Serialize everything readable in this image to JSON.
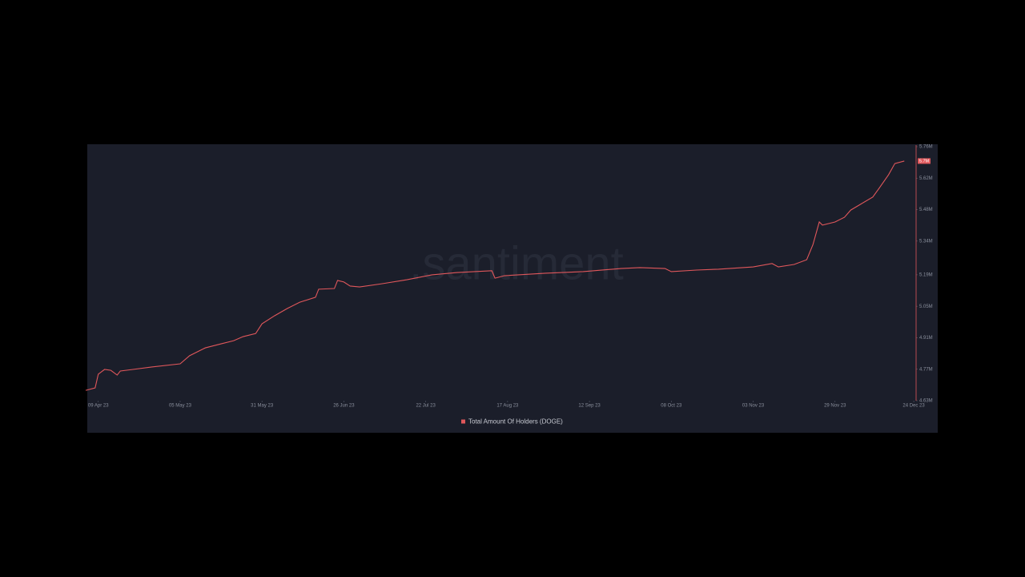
{
  "chart_data": {
    "type": "line",
    "watermark": ".santiment",
    "x": [
      "2023-04-05",
      "2023-04-08",
      "2023-04-09",
      "2023-04-11",
      "2023-04-13",
      "2023-04-15",
      "2023-04-16",
      "2023-04-20",
      "2023-04-26",
      "2023-05-05",
      "2023-05-08",
      "2023-05-13",
      "2023-05-18",
      "2023-05-22",
      "2023-05-25",
      "2023-05-29",
      "2023-05-31",
      "2023-06-04",
      "2023-06-08",
      "2023-06-12",
      "2023-06-17",
      "2023-06-18",
      "2023-06-23",
      "2023-06-24",
      "2023-06-26",
      "2023-06-28",
      "2023-07-01",
      "2023-07-08",
      "2023-07-16",
      "2023-07-24",
      "2023-08-01",
      "2023-08-12",
      "2023-08-13",
      "2023-08-16",
      "2023-08-29",
      "2023-09-10",
      "2023-09-22",
      "2023-09-28",
      "2023-10-06",
      "2023-10-08",
      "2023-10-16",
      "2023-10-23",
      "2023-11-03",
      "2023-11-09",
      "2023-11-11",
      "2023-11-16",
      "2023-11-20",
      "2023-11-22",
      "2023-11-24",
      "2023-11-25",
      "2023-11-29",
      "2023-12-02",
      "2023-12-04",
      "2023-12-07",
      "2023-12-11",
      "2023-12-13",
      "2023-12-16",
      "2023-12-18",
      "2023-12-21"
    ],
    "series": [
      {
        "name": "Total Amount Of Holders (DOGE)",
        "color": "#e0575b",
        "values": [
          4.676,
          4.687,
          4.748,
          4.769,
          4.765,
          4.744,
          4.762,
          4.769,
          4.78,
          4.794,
          4.83,
          4.865,
          4.883,
          4.897,
          4.915,
          4.929,
          4.972,
          5.008,
          5.04,
          5.068,
          5.09,
          5.126,
          5.129,
          5.165,
          5.158,
          5.14,
          5.136,
          5.15,
          5.168,
          5.19,
          5.2,
          5.208,
          5.175,
          5.186,
          5.197,
          5.204,
          5.218,
          5.222,
          5.218,
          5.204,
          5.211,
          5.215,
          5.225,
          5.24,
          5.225,
          5.236,
          5.257,
          5.325,
          5.425,
          5.411,
          5.425,
          5.446,
          5.478,
          5.503,
          5.536,
          5.575,
          5.635,
          5.685,
          5.696
        ],
        "last_value_label": "5.7M"
      }
    ],
    "xlim": [
      "2023-04-05",
      "2023-12-25"
    ],
    "xticks": [
      {
        "value": "2023-04-09",
        "label": "09 Apr 23"
      },
      {
        "value": "2023-05-05",
        "label": "05 May 23"
      },
      {
        "value": "2023-05-31",
        "label": "31 May 23"
      },
      {
        "value": "2023-06-26",
        "label": "26 Jun 23"
      },
      {
        "value": "2023-07-22",
        "label": "22 Jul 23"
      },
      {
        "value": "2023-08-17",
        "label": "17 Aug 23"
      },
      {
        "value": "2023-09-12",
        "label": "12 Sep 23"
      },
      {
        "value": "2023-10-08",
        "label": "08 Oct 23"
      },
      {
        "value": "2023-11-03",
        "label": "03 Nov 23"
      },
      {
        "value": "2023-11-29",
        "label": "29 Nov 23"
      },
      {
        "value": "2023-12-24",
        "label": "24 Dec 23"
      }
    ],
    "ylim": [
      4.63,
      5.76
    ],
    "yticks": [
      {
        "value": 4.63,
        "label": "4.63M"
      },
      {
        "value": 4.77,
        "label": "4.77M"
      },
      {
        "value": 4.91,
        "label": "4.91M"
      },
      {
        "value": 5.05,
        "label": "5.05M"
      },
      {
        "value": 5.19,
        "label": "5.19M"
      },
      {
        "value": 5.34,
        "label": "5.34M"
      },
      {
        "value": 5.48,
        "label": "5.48M"
      },
      {
        "value": 5.62,
        "label": "5.62M"
      },
      {
        "value": 5.76,
        "label": "5.76M"
      }
    ],
    "y_axis_side": "right",
    "grid": false
  }
}
